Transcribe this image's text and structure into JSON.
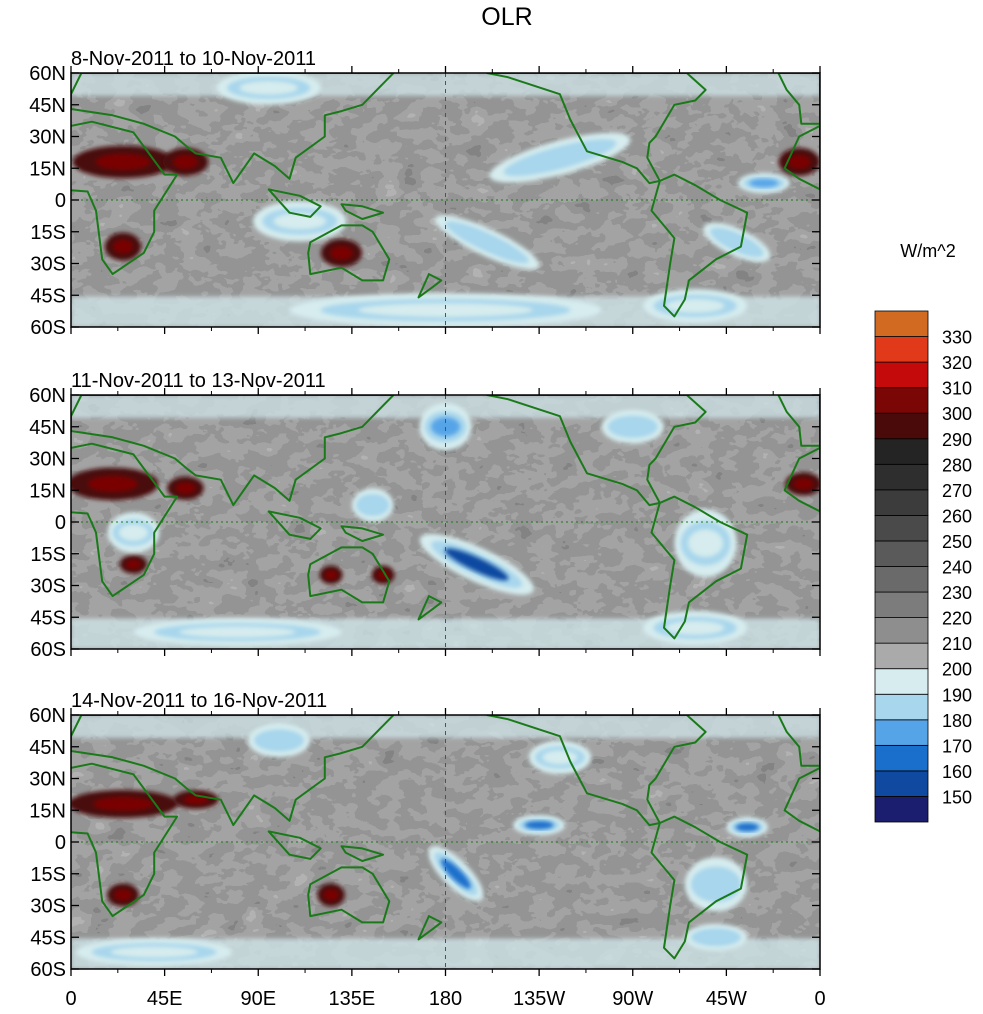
{
  "chart_data": {
    "type": "heatmap",
    "title": "OLR",
    "units_label": "W/m^2",
    "colorbar": {
      "levels": [
        150,
        160,
        170,
        180,
        190,
        200,
        210,
        220,
        230,
        240,
        250,
        260,
        270,
        280,
        290,
        300,
        310,
        320,
        330
      ],
      "colors": [
        "#1b1d6e",
        "#0f4aa0",
        "#1a6fcc",
        "#56a4e8",
        "#a8d6ec",
        "#d6ecee",
        "#aaaaaa",
        "#8e8e8e",
        "#7c7c7c",
        "#6a6a6a",
        "#5a5a5a",
        "#4a4a4a",
        "#3c3c3c",
        "#2e2e2e",
        "#242424",
        "#4a0a0a",
        "#7a0606",
        "#c40a0a",
        "#e03a1a",
        "#d36a22"
      ]
    },
    "y_ticks": [
      "60N",
      "45N",
      "30N",
      "15N",
      "0",
      "15S",
      "30S",
      "45S",
      "60S"
    ],
    "x_ticks": [
      "0",
      "45E",
      "90E",
      "135E",
      "180",
      "135W",
      "90W",
      "45W",
      "0"
    ],
    "lat_range": [
      -60,
      60
    ],
    "lon_range": [
      0,
      360
    ],
    "panels": [
      {
        "label": "8-Nov-2011 to 10-Nov-2011",
        "features": [
          {
            "kind": "high",
            "lon": 25,
            "lat": 18,
            "rx": 22,
            "ry": 7,
            "value": 305
          },
          {
            "kind": "high",
            "lon": 55,
            "lat": 18,
            "rx": 10,
            "ry": 6,
            "value": 300
          },
          {
            "kind": "high",
            "lon": 350,
            "lat": 18,
            "rx": 9,
            "ry": 6,
            "value": 300
          },
          {
            "kind": "high",
            "lon": 25,
            "lat": -22,
            "rx": 8,
            "ry": 6,
            "value": 300
          },
          {
            "kind": "high",
            "lon": 130,
            "lat": -25,
            "rx": 9,
            "ry": 6,
            "value": 300
          },
          {
            "kind": "low",
            "lon": 235,
            "lat": 20,
            "rx": 28,
            "ry": 5,
            "rot": -15,
            "value": 180
          },
          {
            "kind": "low",
            "lon": 200,
            "lat": -20,
            "rx": 22,
            "ry": 4,
            "rot": 25,
            "value": 185
          },
          {
            "kind": "low",
            "lon": 333,
            "lat": 8,
            "rx": 10,
            "ry": 3,
            "value": 175
          },
          {
            "kind": "low",
            "lon": 320,
            "lat": -20,
            "rx": 14,
            "ry": 4,
            "rot": 25,
            "value": 185
          },
          {
            "kind": "low",
            "lon": 110,
            "lat": -10,
            "rx": 18,
            "ry": 6,
            "value": 195
          },
          {
            "kind": "low",
            "lon": 95,
            "lat": 53,
            "rx": 20,
            "ry": 5,
            "value": 190
          },
          {
            "kind": "low",
            "lon": 300,
            "lat": -50,
            "rx": 20,
            "ry": 5,
            "value": 190
          },
          {
            "kind": "low",
            "lon": 180,
            "lat": -52,
            "rx": 60,
            "ry": 5,
            "value": 195
          }
        ]
      },
      {
        "label": "11-Nov-2011 to 13-Nov-2011",
        "features": [
          {
            "kind": "high",
            "lon": 20,
            "lat": 18,
            "rx": 20,
            "ry": 7,
            "value": 300
          },
          {
            "kind": "high",
            "lon": 55,
            "lat": 16,
            "rx": 8,
            "ry": 5,
            "value": 300
          },
          {
            "kind": "high",
            "lon": 352,
            "lat": 18,
            "rx": 8,
            "ry": 5,
            "value": 300
          },
          {
            "kind": "high",
            "lon": 30,
            "lat": -20,
            "rx": 6,
            "ry": 4,
            "value": 300
          },
          {
            "kind": "high",
            "lon": 125,
            "lat": -25,
            "rx": 5,
            "ry": 4,
            "value": 300
          },
          {
            "kind": "high",
            "lon": 150,
            "lat": -25,
            "rx": 5,
            "ry": 4,
            "value": 300
          },
          {
            "kind": "low",
            "lon": 195,
            "lat": -20,
            "rx": 24,
            "ry": 5,
            "rot": 25,
            "value": 155
          },
          {
            "kind": "low",
            "lon": 180,
            "lat": 45,
            "rx": 10,
            "ry": 7,
            "value": 175
          },
          {
            "kind": "low",
            "lon": 270,
            "lat": 45,
            "rx": 12,
            "ry": 5,
            "value": 185
          },
          {
            "kind": "low",
            "lon": 145,
            "lat": 8,
            "rx": 8,
            "ry": 5,
            "value": 180
          },
          {
            "kind": "low",
            "lon": 30,
            "lat": -5,
            "rx": 10,
            "ry": 6,
            "value": 190
          },
          {
            "kind": "low",
            "lon": 305,
            "lat": -10,
            "rx": 12,
            "ry": 10,
            "value": 190
          },
          {
            "kind": "low",
            "lon": 300,
            "lat": -50,
            "rx": 20,
            "ry": 5,
            "value": 190
          },
          {
            "kind": "low",
            "lon": 80,
            "lat": -52,
            "rx": 40,
            "ry": 4,
            "value": 195
          }
        ]
      },
      {
        "label": "14-Nov-2011 to 16-Nov-2011",
        "features": [
          {
            "kind": "high",
            "lon": 25,
            "lat": 18,
            "rx": 24,
            "ry": 6,
            "value": 300
          },
          {
            "kind": "high",
            "lon": 60,
            "lat": 20,
            "rx": 10,
            "ry": 4,
            "value": 300
          },
          {
            "kind": "high",
            "lon": 25,
            "lat": -25,
            "rx": 7,
            "ry": 5,
            "value": 300
          },
          {
            "kind": "high",
            "lon": 125,
            "lat": -25,
            "rx": 6,
            "ry": 5,
            "value": 300
          },
          {
            "kind": "low",
            "lon": 185,
            "lat": -15,
            "rx": 14,
            "ry": 4,
            "rot": 45,
            "value": 160
          },
          {
            "kind": "low",
            "lon": 225,
            "lat": 8,
            "rx": 10,
            "ry": 3,
            "value": 165
          },
          {
            "kind": "low",
            "lon": 325,
            "lat": 7,
            "rx": 8,
            "ry": 3,
            "value": 165
          },
          {
            "kind": "low",
            "lon": 310,
            "lat": -20,
            "rx": 12,
            "ry": 8,
            "value": 185
          },
          {
            "kind": "low",
            "lon": 100,
            "lat": 48,
            "rx": 12,
            "ry": 5,
            "value": 185
          },
          {
            "kind": "low",
            "lon": 235,
            "lat": 40,
            "rx": 12,
            "ry": 5,
            "value": 190
          },
          {
            "kind": "low",
            "lon": 310,
            "lat": -45,
            "rx": 12,
            "ry": 4,
            "value": 185
          },
          {
            "kind": "low",
            "lon": 40,
            "lat": -52,
            "rx": 30,
            "ry": 4,
            "value": 190
          }
        ]
      }
    ]
  }
}
